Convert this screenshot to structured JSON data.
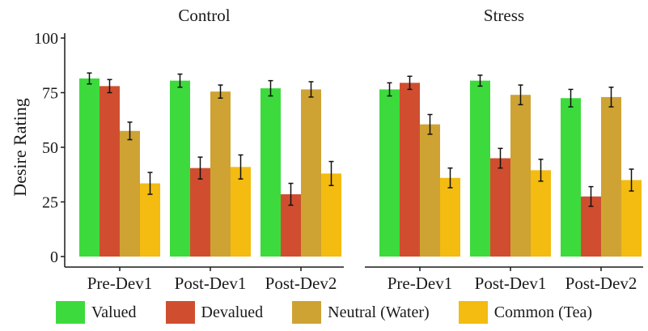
{
  "chart_data": {
    "type": "bar",
    "ylabel": "Desire Rating",
    "ylim": [
      0,
      100
    ],
    "yticks": [
      0,
      25,
      50,
      75,
      100
    ],
    "categories": [
      "Pre-Dev1",
      "Post-Dev1",
      "Post-Dev2"
    ],
    "panels": [
      {
        "title": "Control",
        "series": [
          {
            "name": "Valued",
            "values": [
              81.5,
              80.5,
              77.0
            ],
            "errors": [
              2.5,
              3.0,
              3.5
            ]
          },
          {
            "name": "Devalued",
            "values": [
              78.0,
              40.5,
              28.5
            ],
            "errors": [
              3.0,
              5.0,
              5.0
            ]
          },
          {
            "name": "Neutral (Water)",
            "values": [
              57.5,
              75.5,
              76.5
            ],
            "errors": [
              4.0,
              3.0,
              3.5
            ]
          },
          {
            "name": "Common (Tea)",
            "values": [
              33.5,
              41.0,
              38.0
            ],
            "errors": [
              5.0,
              5.5,
              5.5
            ]
          }
        ]
      },
      {
        "title": "Stress",
        "series": [
          {
            "name": "Valued",
            "values": [
              76.5,
              80.5,
              72.5
            ],
            "errors": [
              3.0,
              2.5,
              4.0
            ]
          },
          {
            "name": "Devalued",
            "values": [
              79.5,
              45.0,
              27.5
            ],
            "errors": [
              3.0,
              4.5,
              4.5
            ]
          },
          {
            "name": "Neutral (Water)",
            "values": [
              60.5,
              74.0,
              73.0
            ],
            "errors": [
              4.5,
              4.5,
              4.5
            ]
          },
          {
            "name": "Common (Tea)",
            "values": [
              36.0,
              39.5,
              35.0
            ],
            "errors": [
              4.5,
              5.0,
              5.0
            ]
          }
        ]
      }
    ],
    "colors": [
      "#3dda3d",
      "#d04e2f",
      "#cea333",
      "#f4bb10"
    ],
    "grid": false,
    "legend_position": "bottom"
  },
  "legend": [
    {
      "label": "Valued",
      "color": "#3dda3d"
    },
    {
      "label": "Devalued",
      "color": "#d04e2f"
    },
    {
      "label": "Neutral (Water)",
      "color": "#cea333"
    },
    {
      "label": "Common (Tea)",
      "color": "#f4bb10"
    }
  ]
}
